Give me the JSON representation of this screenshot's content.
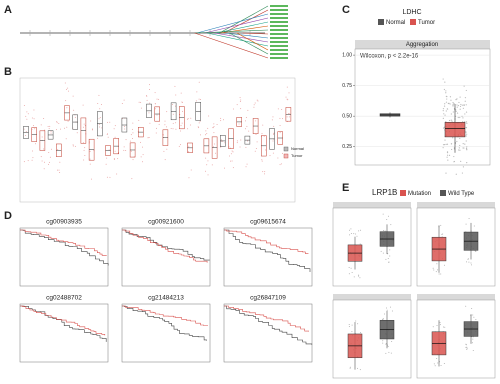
{
  "figure": {
    "panel_labels": [
      "A",
      "B",
      "C",
      "D",
      "E"
    ],
    "b_legend": [
      "Normal",
      "Tumor"
    ],
    "d_titles": [
      "cg00903935",
      "cg00921600",
      "cg09615674",
      "cg02488702",
      "cg21484213",
      "cg26847109"
    ],
    "e_title": "LRP1B",
    "e_legend": [
      "Mutation",
      "Wild Type"
    ]
  },
  "chart_data": {
    "type": "box",
    "title": "LDHC",
    "strip": "Aggregation",
    "annotation": "Wilcoxon, p < 2.2e-16",
    "series": [
      {
        "name": "Normal",
        "color": "#555555",
        "low": 0.49,
        "q1": 0.5,
        "median": 0.51,
        "q3": 0.52,
        "high": 0.53
      },
      {
        "name": "Tumor",
        "color": "#d9534f",
        "low": 0.2,
        "q1": 0.33,
        "median": 0.4,
        "q3": 0.45,
        "high": 0.6
      }
    ],
    "ylim": [
      0.1,
      1.05
    ],
    "yticks": [
      0.25,
      {
        "value": 0.5,
        "label": "0.50"
      },
      0.75,
      {
        "value": 1,
        "label": "1.00"
      }
    ],
    "grid": true
  }
}
